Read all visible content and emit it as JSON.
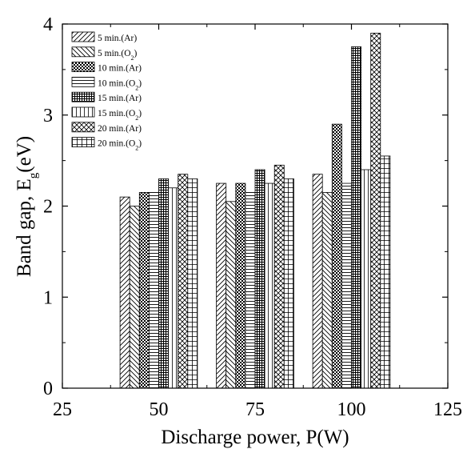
{
  "chart_data": {
    "type": "bar",
    "xlabel": "Discharge power, P(W)",
    "ylabel": {
      "main": "Band gap, E",
      "sub": "g",
      "tail": "(eV)"
    },
    "xlim": [
      25,
      125
    ],
    "ylim": [
      0,
      4
    ],
    "xticks": [
      "25",
      "50",
      "75",
      "100",
      "125"
    ],
    "yticks": [
      "0",
      "1",
      "2",
      "3",
      "4"
    ],
    "legend_position": "top-left",
    "groups": [
      50,
      75,
      100
    ],
    "series": [
      {
        "name": "5 min.(Ar)",
        "label_main": "5 min.(Ar)",
        "pattern": "diag-right",
        "values": [
          2.1,
          2.25,
          2.35
        ]
      },
      {
        "name": "5 min.(O2)",
        "label_main": "5 min.(O",
        "label_sub": "2",
        "label_tail": ")",
        "pattern": "diag-left",
        "values": [
          2.0,
          2.05,
          2.15
        ]
      },
      {
        "name": "10 min.(Ar)",
        "label_main": "10 min.(Ar)",
        "pattern": "checker",
        "values": [
          2.15,
          2.25,
          2.9
        ]
      },
      {
        "name": "10 min.(O2)",
        "label_main": "10 min.(O",
        "label_sub": "2",
        "label_tail": ")",
        "pattern": "horizontal",
        "values": [
          2.15,
          2.15,
          2.25
        ]
      },
      {
        "name": "15 min.(Ar)",
        "label_main": "15 min.(Ar)",
        "pattern": "dense-grid",
        "values": [
          2.3,
          2.4,
          3.75
        ]
      },
      {
        "name": "15 min.(O2)",
        "label_main": "15 min.(O",
        "label_sub": "2",
        "label_tail": ")",
        "pattern": "vertical",
        "values": [
          2.2,
          2.25,
          2.4
        ]
      },
      {
        "name": "20 min.(Ar)",
        "label_main": "20 min.(Ar)",
        "pattern": "crosshatch",
        "values": [
          2.35,
          2.45,
          3.9
        ]
      },
      {
        "name": "20 min.(O2)",
        "label_main": "20 min.(O",
        "label_sub": "2",
        "label_tail": ")",
        "pattern": "grid",
        "values": [
          2.3,
          2.3,
          2.55
        ]
      }
    ]
  }
}
